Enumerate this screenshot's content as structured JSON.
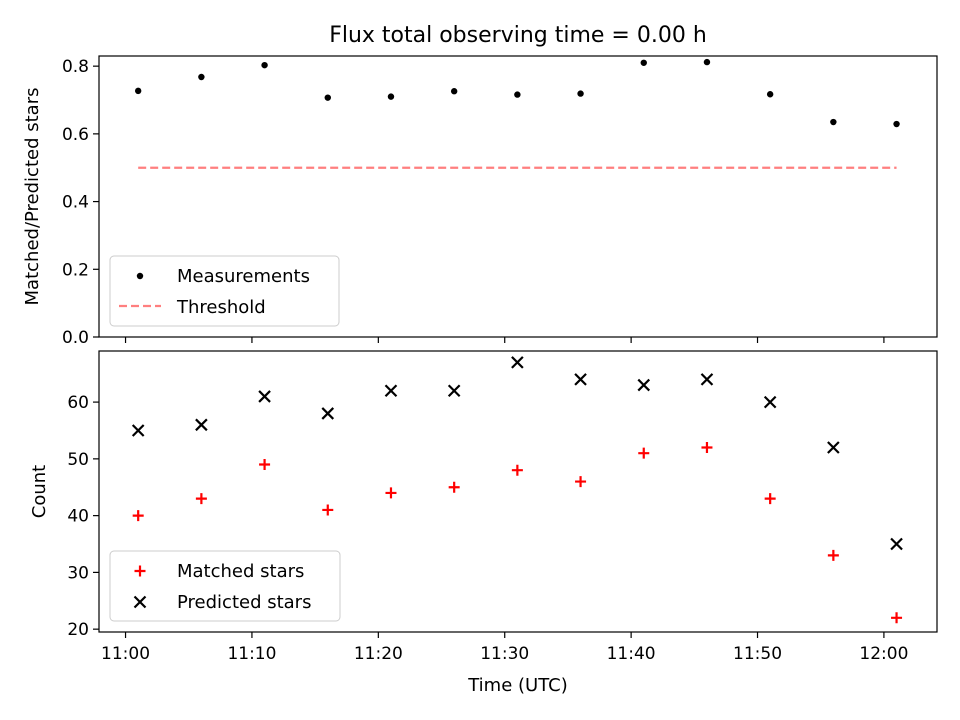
{
  "chart_data": [
    {
      "type": "scatter",
      "title": "Flux total observing time = 0.00 h",
      "ylabel": "Matched/Predicted stars",
      "ylim": [
        0,
        0.83
      ],
      "yticks": [
        "0.0",
        "0.2",
        "0.4",
        "0.6",
        "0.8"
      ],
      "x": [
        "11:01",
        "11:06",
        "11:11",
        "11:16",
        "11:21",
        "11:26",
        "11:31",
        "11:36",
        "11:41",
        "11:46",
        "11:51",
        "11:56",
        "12:01"
      ],
      "series": [
        {
          "name": "Measurements",
          "values": [
            0.727,
            0.768,
            0.803,
            0.707,
            0.71,
            0.726,
            0.716,
            0.719,
            0.81,
            0.812,
            0.717,
            0.635,
            0.629
          ],
          "color": "#000000",
          "marker": "dot"
        },
        {
          "name": "Threshold",
          "values": [
            0.5,
            0.5
          ],
          "x": [
            "11:01",
            "12:01"
          ],
          "color": "#ff7f7f",
          "style": "dashed"
        }
      ],
      "legend": "lower-left"
    },
    {
      "type": "scatter",
      "xlabel": "Time (UTC)",
      "ylabel": "Count",
      "ylim": [
        19.5,
        69
      ],
      "yticks": [
        "20",
        "30",
        "40",
        "50",
        "60"
      ],
      "xticks": [
        "11:00",
        "11:10",
        "11:20",
        "11:30",
        "11:40",
        "11:50",
        "12:00"
      ],
      "x": [
        "11:01",
        "11:06",
        "11:11",
        "11:16",
        "11:21",
        "11:26",
        "11:31",
        "11:36",
        "11:41",
        "11:46",
        "11:51",
        "11:56",
        "12:01"
      ],
      "series": [
        {
          "name": "Matched stars",
          "values": [
            40,
            43,
            49,
            41,
            44,
            45,
            48,
            46,
            51,
            52,
            43,
            33,
            22
          ],
          "color": "#ff0000",
          "marker": "plus"
        },
        {
          "name": "Predicted stars",
          "values": [
            55,
            56,
            61,
            58,
            62,
            62,
            67,
            64,
            63,
            64,
            60,
            52,
            35
          ],
          "color": "#000000",
          "marker": "x"
        }
      ],
      "legend": "lower-left"
    }
  ]
}
